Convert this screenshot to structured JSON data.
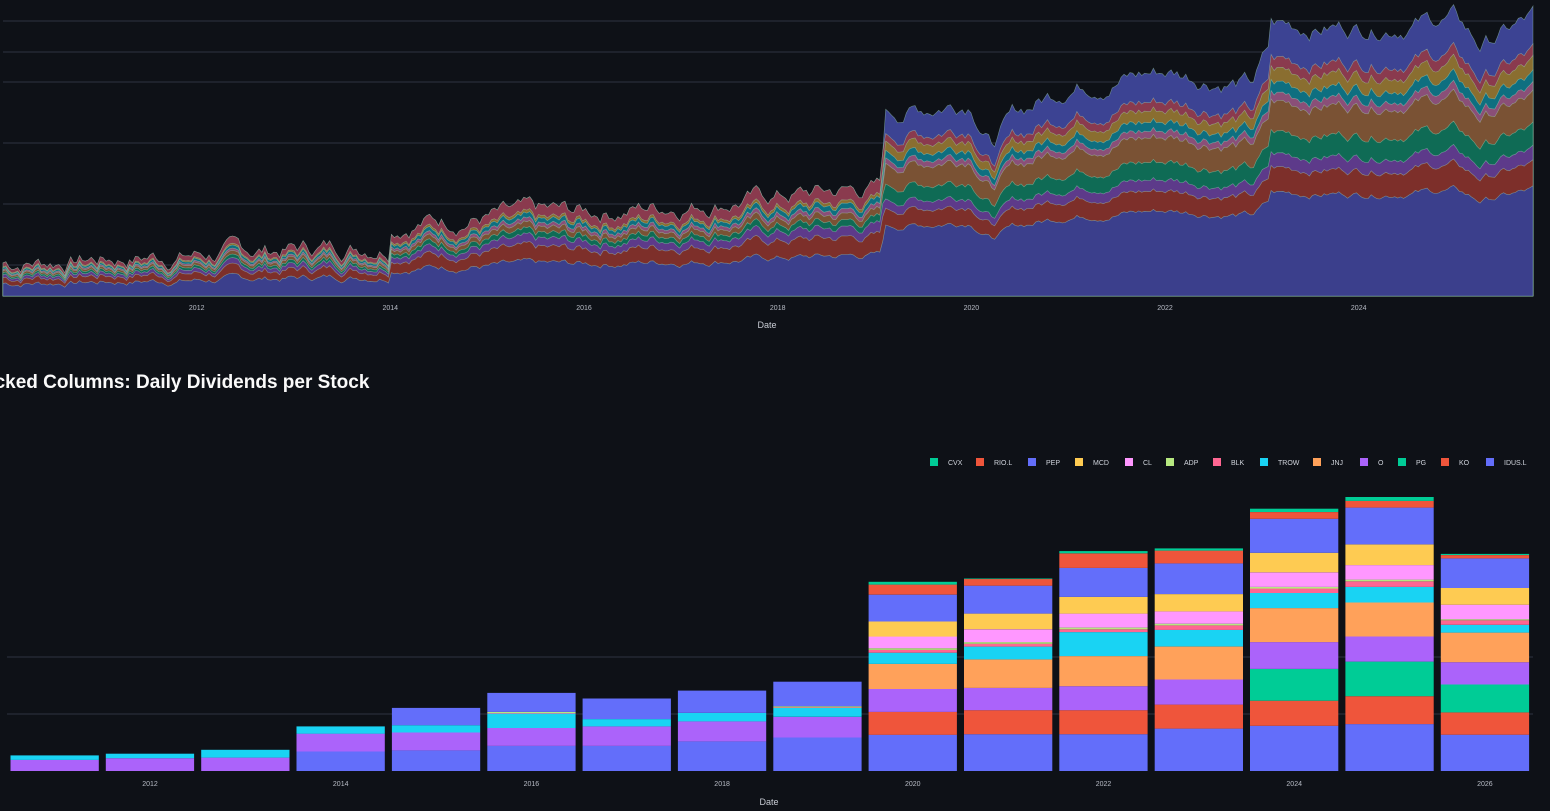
{
  "section_title": "Stacked Columns: Daily Dividends per Stock",
  "chart_data": [
    {
      "type": "area",
      "title": "",
      "xlabel": "Date",
      "ylabel": "",
      "x_ticks": [
        "2012",
        "2014",
        "2016",
        "2018",
        "2020",
        "2022",
        "2024"
      ],
      "x_range": [
        2010.0,
        2025.8
      ],
      "grid": true,
      "legend": "none",
      "colors": [
        "#3b3f8c",
        "#7d2f2a",
        "#5d3a8a",
        "#0f6b55",
        "#7a5234",
        "#8a4f78",
        "#0e6f80",
        "#8a6e30",
        "#8a3a4e",
        "#3c4393"
      ],
      "stack_profile_dates": [
        2010.0,
        2012.0,
        2014.0,
        2014.01,
        2016.0,
        2018.0,
        2019.08,
        2019.09,
        2020.0,
        2020.2,
        2020.45,
        2021.0,
        2022.0,
        2022.9,
        2023.08,
        2023.09,
        2024.0,
        2025.0,
        2025.25,
        2025.8
      ],
      "stack_totals": [
        0.12,
        0.15,
        0.19,
        0.27,
        0.3,
        0.36,
        0.39,
        0.65,
        0.71,
        0.55,
        0.65,
        0.76,
        0.81,
        0.76,
        0.89,
        0.97,
        0.97,
        1.0,
        0.9,
        1.0
      ]
    },
    {
      "type": "bar",
      "stacked": true,
      "title": "Stacked Columns: Daily Dividends per Stock",
      "xlabel": "Date",
      "ylabel": "",
      "legend_position": "top-right",
      "x_ticks": [
        "2012",
        "2014",
        "2016",
        "2018",
        "2020",
        "2022",
        "2024",
        "2026"
      ],
      "categories": [
        "2011",
        "2012",
        "2013",
        "2014",
        "2015",
        "2016",
        "2017",
        "2018",
        "2019",
        "2020",
        "2021",
        "2022",
        "2023",
        "2024",
        "2025",
        "2026"
      ],
      "series_legend_order": [
        "CVX",
        "RIO.L",
        "PEP",
        "MCD",
        "CL",
        "ADP",
        "BLK",
        "TROW",
        "JNJ",
        "O",
        "PG",
        "KO",
        "IDUS.L"
      ],
      "series": [
        {
          "name": "IDUS.L",
          "color": "#636efa",
          "values": [
            0,
            0,
            0,
            3.5,
            3.7,
            4.5,
            4.5,
            5.3,
            6.0,
            6.5,
            6.6,
            6.6,
            7.6,
            8.1,
            8.4,
            6.5
          ]
        },
        {
          "name": "KO",
          "color": "#ef553b",
          "values": [
            0,
            0,
            0,
            0,
            0,
            0,
            0,
            0,
            0,
            4.1,
            4.3,
            4.3,
            4.3,
            4.5,
            5.0,
            4.0
          ]
        },
        {
          "name": "PG",
          "color": "#00cc96",
          "values": [
            0,
            0,
            0,
            0,
            0,
            0,
            0,
            0,
            0,
            0,
            0,
            0,
            0,
            5.7,
            6.2,
            5.0
          ]
        },
        {
          "name": "O",
          "color": "#ab63fa",
          "values": [
            2.0,
            2.3,
            2.4,
            3.2,
            3.2,
            3.2,
            3.5,
            3.6,
            3.7,
            4.1,
            4.0,
            4.3,
            4.5,
            4.8,
            4.5,
            4.0
          ]
        },
        {
          "name": "JNJ",
          "color": "#ffa15a",
          "values": [
            0,
            0,
            0,
            0,
            0,
            0,
            0,
            0,
            0,
            4.5,
            5.1,
            5.4,
            5.9,
            6.1,
            6.1,
            5.3
          ]
        },
        {
          "name": "TROW",
          "color": "#19d3f3",
          "values": [
            0.8,
            0.8,
            1.4,
            1.3,
            1.3,
            2.6,
            1.3,
            1.5,
            1.6,
            2.0,
            2.3,
            4.3,
            3.0,
            2.7,
            2.8,
            1.4
          ]
        },
        {
          "name": "BLK",
          "color": "#ff6692",
          "values": [
            0,
            0,
            0,
            0,
            0,
            0.1,
            0,
            0,
            0.1,
            0.5,
            0.5,
            0.5,
            0.8,
            0.8,
            1.0,
            0.8
          ]
        },
        {
          "name": "ADP",
          "color": "#b6e880",
          "values": [
            0,
            0,
            0,
            0,
            0,
            0.2,
            0,
            0,
            0.2,
            0.3,
            0.3,
            0.3,
            0.3,
            0.3,
            0.3,
            0.2
          ]
        },
        {
          "name": "CL",
          "color": "#ff97ff",
          "values": [
            0,
            0,
            0,
            0,
            0,
            0,
            0,
            0,
            0,
            2.1,
            2.3,
            2.5,
            2.2,
            2.6,
            2.6,
            2.6
          ]
        },
        {
          "name": "MCD",
          "color": "#fecb52",
          "values": [
            0,
            0,
            0,
            0,
            0,
            0,
            0,
            0,
            0,
            2.7,
            2.8,
            3.0,
            3.1,
            3.5,
            3.7,
            3.0
          ]
        },
        {
          "name": "PEP",
          "color": "#636efa",
          "values": [
            0,
            0,
            0,
            0,
            3.1,
            3.4,
            3.7,
            4.0,
            4.4,
            4.8,
            5.0,
            5.2,
            5.5,
            6.1,
            6.6,
            5.3
          ]
        },
        {
          "name": "RIO.L",
          "color": "#ef553b",
          "values": [
            0,
            0,
            0,
            0,
            0,
            0,
            0,
            0,
            0,
            1.8,
            1.2,
            2.6,
            2.3,
            1.2,
            1.2,
            0.6
          ]
        },
        {
          "name": "CVX",
          "color": "#00cc96",
          "values": [
            0,
            0,
            0,
            0,
            0,
            0,
            0,
            0,
            0,
            0.5,
            0.1,
            0.4,
            0.4,
            0.6,
            0.7,
            0.2
          ]
        }
      ]
    }
  ]
}
